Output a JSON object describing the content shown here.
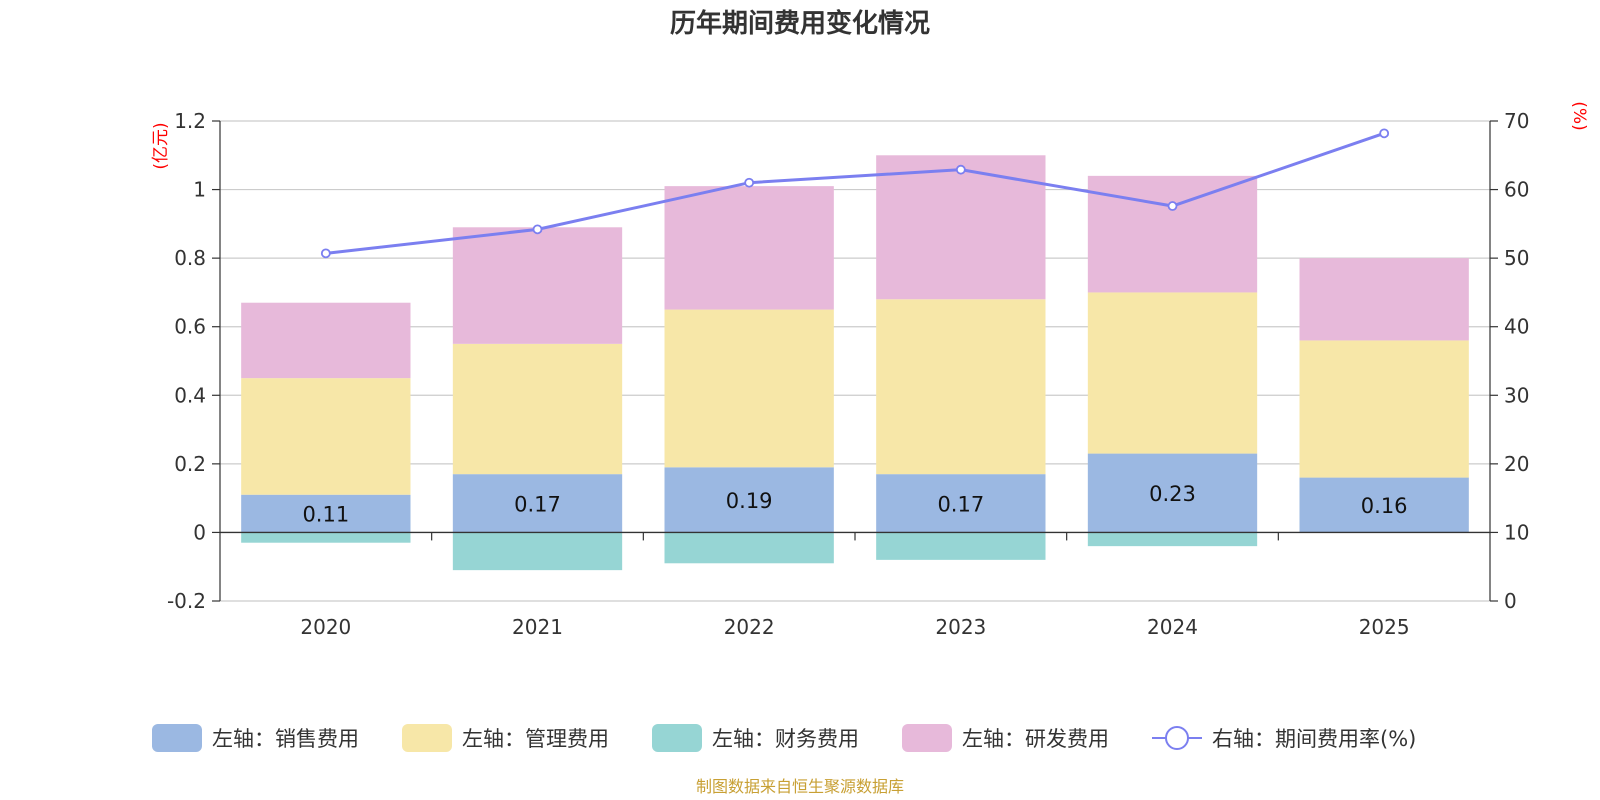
{
  "chart_data": {
    "type": "bar",
    "stacked": true,
    "title": "历年期间费用变化情况",
    "categories": [
      "2020",
      "2021",
      "2022",
      "2023",
      "2024",
      "2025"
    ],
    "y_left": {
      "unit": "(亿元)",
      "ylim": [
        -0.2,
        1.2
      ],
      "ticks": [
        -0.2,
        0,
        0.2,
        0.4,
        0.6,
        0.8,
        1,
        1.2
      ]
    },
    "y_right": {
      "unit": "(%)",
      "ylim": [
        0,
        70
      ],
      "ticks": [
        0,
        10,
        20,
        30,
        40,
        50,
        60,
        70
      ]
    },
    "series": [
      {
        "name": "左轴：销售费用",
        "type": "bar",
        "axis": "left",
        "color": "#9bb8e2",
        "values": [
          0.11,
          0.17,
          0.19,
          0.17,
          0.23,
          0.16
        ],
        "labels": [
          "0.11",
          "0.17",
          "0.19",
          "0.17",
          "0.23",
          "0.16"
        ]
      },
      {
        "name": "左轴：管理费用",
        "type": "bar",
        "axis": "left",
        "color": "#f7e7a8",
        "values": [
          0.34,
          0.38,
          0.46,
          0.51,
          0.47,
          0.4
        ]
      },
      {
        "name": "左轴：财务费用",
        "type": "bar",
        "axis": "left",
        "color": "#96d5d4",
        "values": [
          -0.03,
          -0.11,
          -0.09,
          -0.08,
          -0.04,
          0.0
        ]
      },
      {
        "name": "左轴：研发费用",
        "type": "bar",
        "axis": "left",
        "color": "#e7b9da",
        "values": [
          0.22,
          0.34,
          0.36,
          0.42,
          0.34,
          0.24
        ]
      },
      {
        "name": "右轴：期间费用率(%)",
        "type": "line",
        "axis": "right",
        "color": "#7b7ff0",
        "values": [
          50.7,
          54.2,
          61.0,
          62.9,
          57.6,
          68.2
        ]
      }
    ],
    "legend_position": "bottom",
    "grid": true
  },
  "footer": {
    "source": "制图数据来自恒生聚源数据库"
  }
}
